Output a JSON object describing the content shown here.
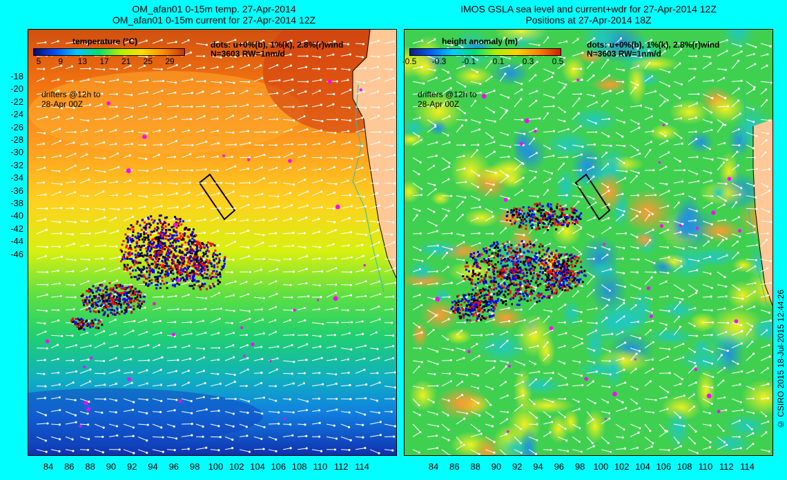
{
  "left_panel": {
    "title_line1": "OM_afan01 0-15m temp. 27-Apr-2014",
    "title_line2": "OM_afan01 0-15m current for 27-Apr-2014 12Z",
    "colorbar": {
      "label": "temperature (°C)",
      "ticks": [
        "5",
        "9",
        "13",
        "17",
        "21",
        "25",
        "29"
      ],
      "colors": [
        "#0a0a6e",
        "#0050ff",
        "#00c8ff",
        "#00e070",
        "#b0f000",
        "#ffe000",
        "#ff9000",
        "#c83000"
      ]
    },
    "dots_text": "dots: u+0%(b), 1%(k), 2.8%(r)wind",
    "n_text": "N=3603 RW=1nm/d",
    "drifters_text_1": "drifters @12h to",
    "drifters_text_2": "28-Apr 00Z"
  },
  "right_panel": {
    "title_line1": "IMOS GSLA sea level and current+wdr for 27-Apr-2014 12Z",
    "title_line2": "Positions at 27-Apr-2014 18Z",
    "colorbar": {
      "label": "height anomaly (m)",
      "ticks": [
        "-0.5",
        "-0.3",
        "-0.1",
        "0.1",
        "0.3",
        "0.5"
      ],
      "colors": [
        "#1a1a80",
        "#0060ff",
        "#00d0ff",
        "#00e070",
        "#b0f000",
        "#ffd000",
        "#ff8000",
        "#d02000"
      ]
    },
    "dots_text": "dots: u+0%(b), 1%(k), 2.8%(r)wind",
    "n_text": "N=3603 RW=1nm/d",
    "drifters_text_1": "drifters @12h to",
    "drifters_text_2": "28-Apr 00Z"
  },
  "axes": {
    "y_ticks": [
      "-18",
      "-20",
      "-22",
      "-24",
      "-26",
      "-28",
      "-30",
      "-32",
      "-34",
      "-36",
      "-38",
      "-40",
      "-42",
      "-44",
      "-46"
    ],
    "x_ticks": [
      "84",
      "86",
      "88",
      "90",
      "92",
      "94",
      "96",
      "98",
      "100",
      "102",
      "104",
      "106",
      "108",
      "110",
      "112",
      "114"
    ]
  },
  "credit": "© CSIRO 2015   18-Jul-2015 12:44:26",
  "colors": {
    "background": "#00ffff",
    "land": "#ffc896",
    "drifter_blue": "#0000ff",
    "drifter_black": "#000000",
    "drifter_red": "#ff0000",
    "magenta": "#ff00ff"
  }
}
